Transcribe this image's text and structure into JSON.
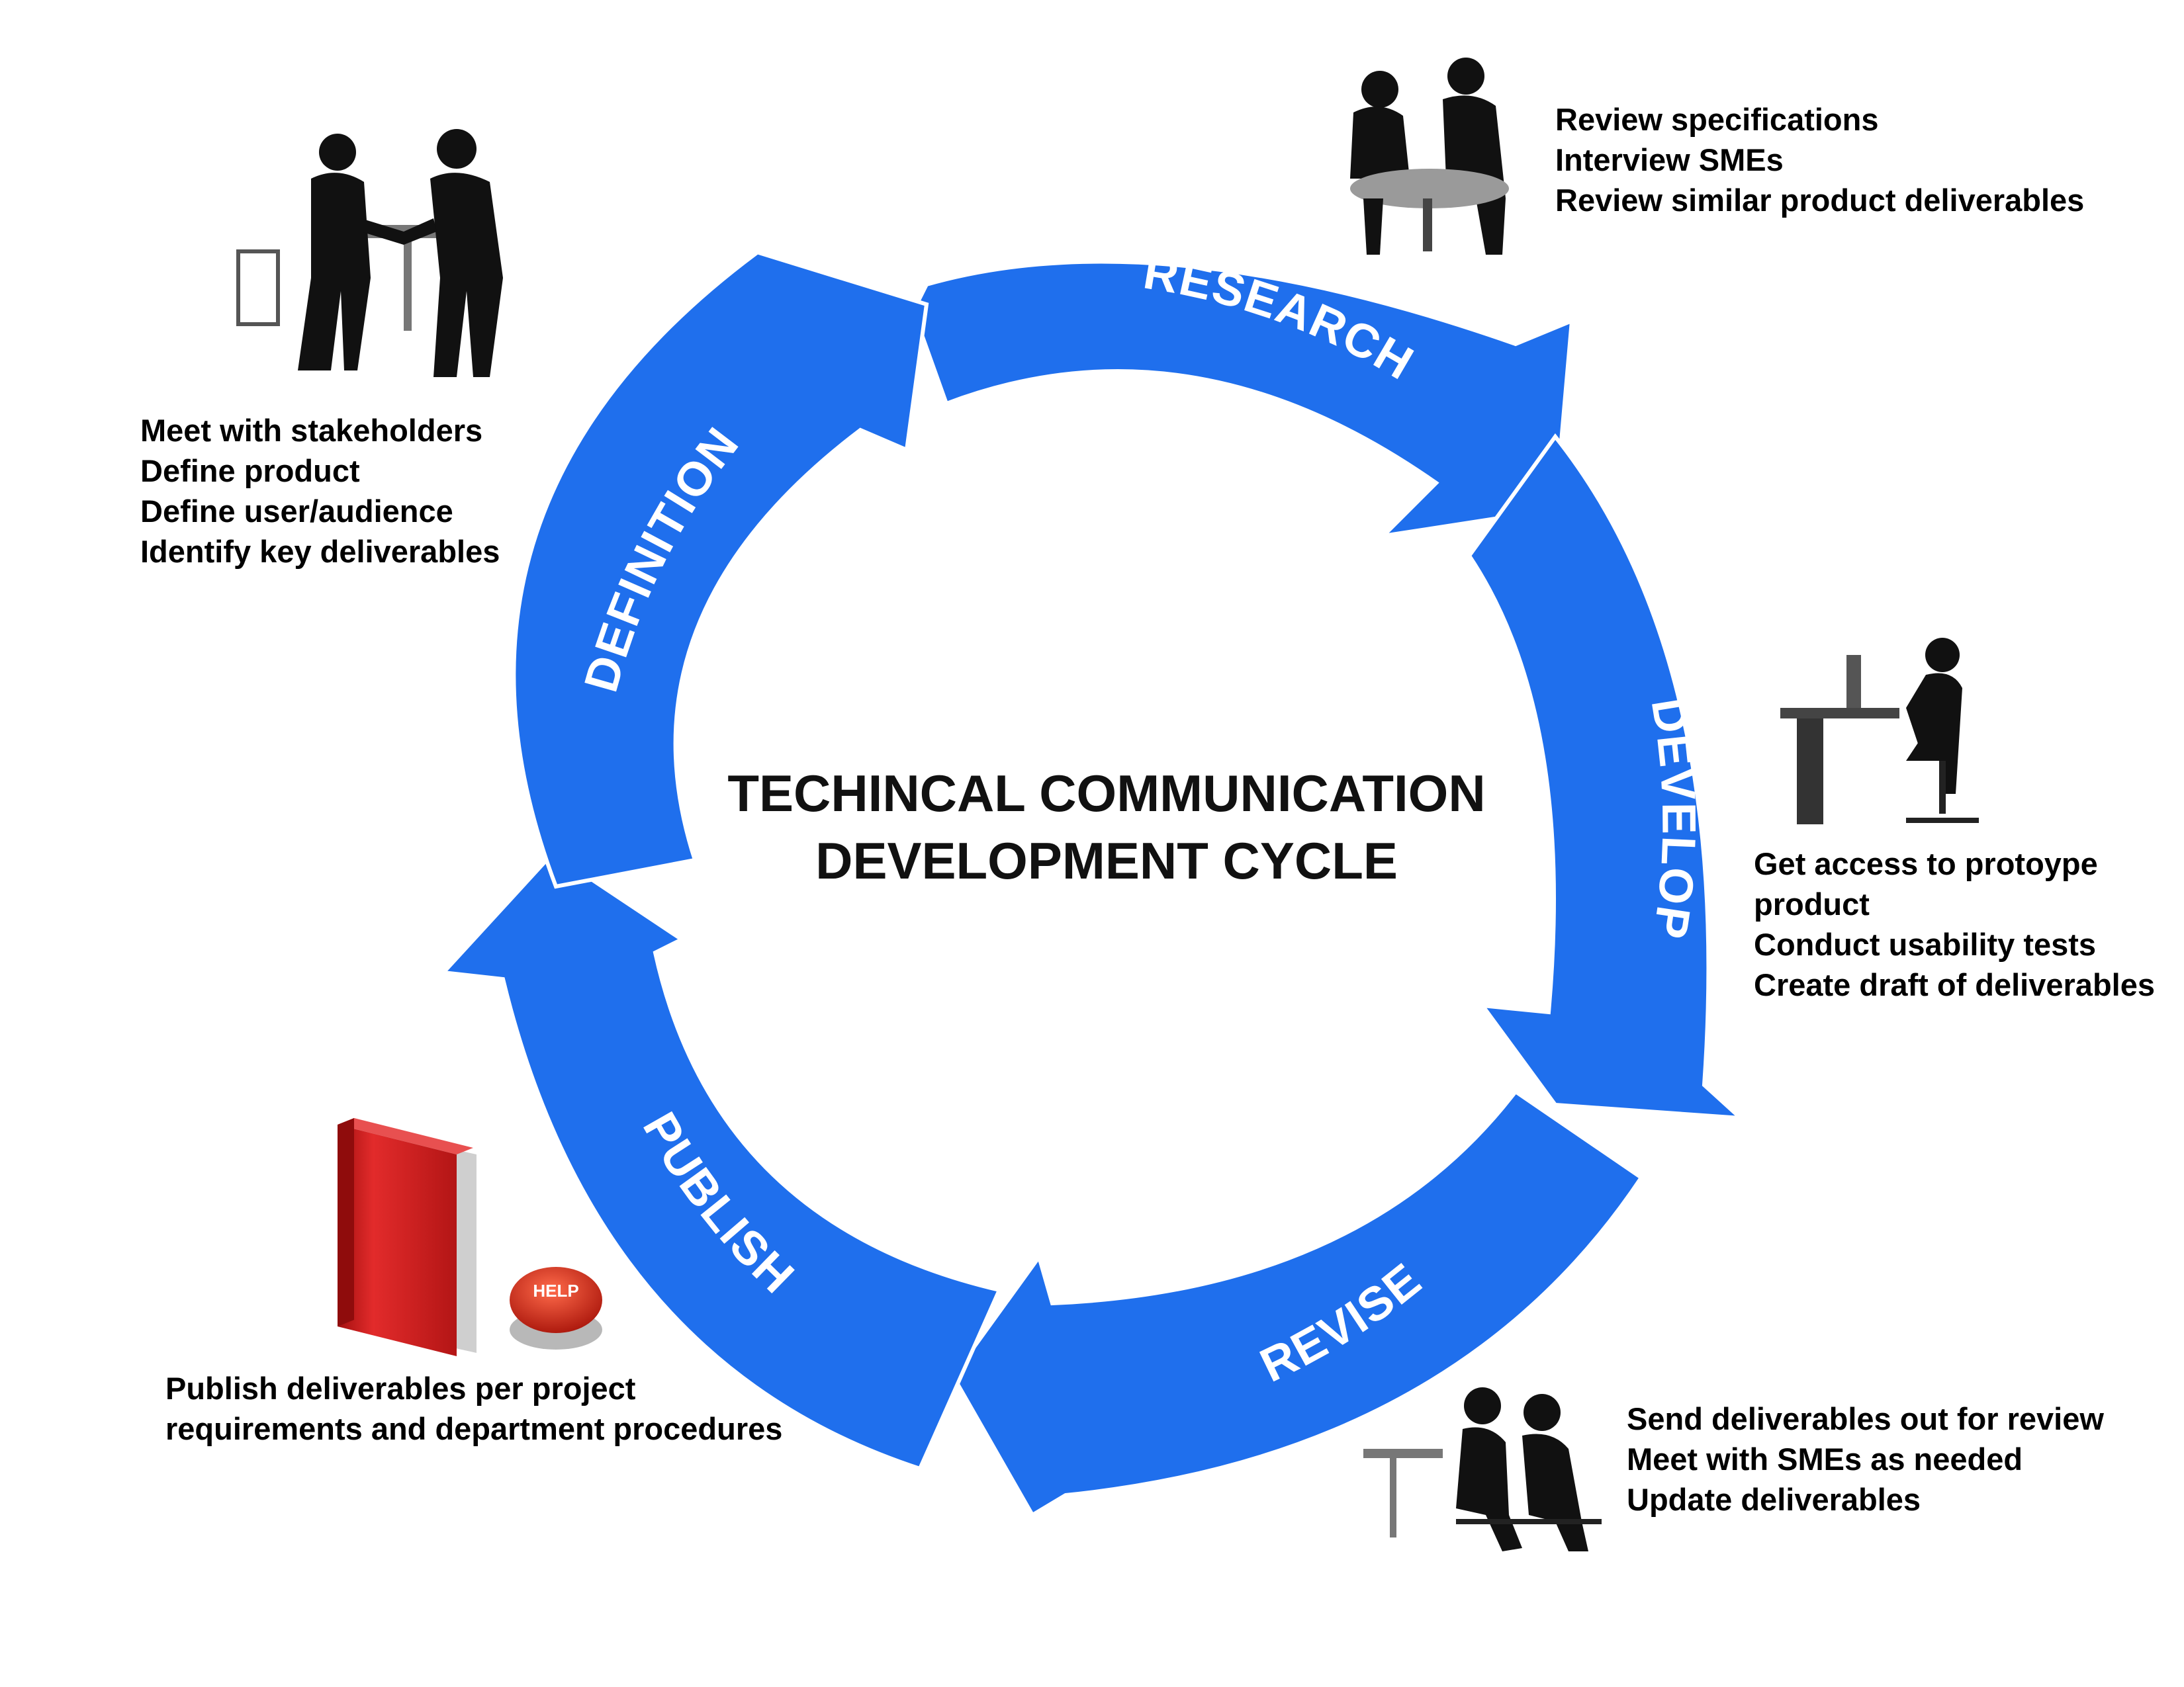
{
  "title": {
    "line1": "TECHINCAL COMMUNICATION",
    "line2": "DEVELOPMENT CYCLE"
  },
  "stages": [
    {
      "name": "RESEARCH",
      "icon": "two-people-at-table-silhouette-icon",
      "notes": [
        "Review specifications",
        "Interview SMEs",
        "Review similar product deliverables"
      ]
    },
    {
      "name": "DEVELOP",
      "icon": "person-at-desk-silhouette-icon",
      "notes": [
        "Get access to protoype",
        "product",
        "Conduct usability tests",
        "Create draft of deliverables"
      ]
    },
    {
      "name": "REVISE",
      "icon": "two-people-reviewing-silhouette-icon",
      "notes": [
        "Send deliverables out for review",
        "Meet with SMEs as needed",
        "Update deliverables"
      ]
    },
    {
      "name": "PUBLISH",
      "icon": "red-book-help-button-icon",
      "notes": [
        "Publish deliverables per project",
        "requirements and department procedures"
      ],
      "button_text": "HELP"
    },
    {
      "name": "DEFINITION",
      "icon": "handshake-silhouette-icon",
      "notes": [
        "Meet with stakeholders",
        "Define product",
        "Define user/audience",
        "Identify key deliverables"
      ]
    }
  ],
  "colors": {
    "arrow": "#1f6fed",
    "text": "#000000",
    "book": "#d11f1f",
    "button": "#d32a1c"
  }
}
